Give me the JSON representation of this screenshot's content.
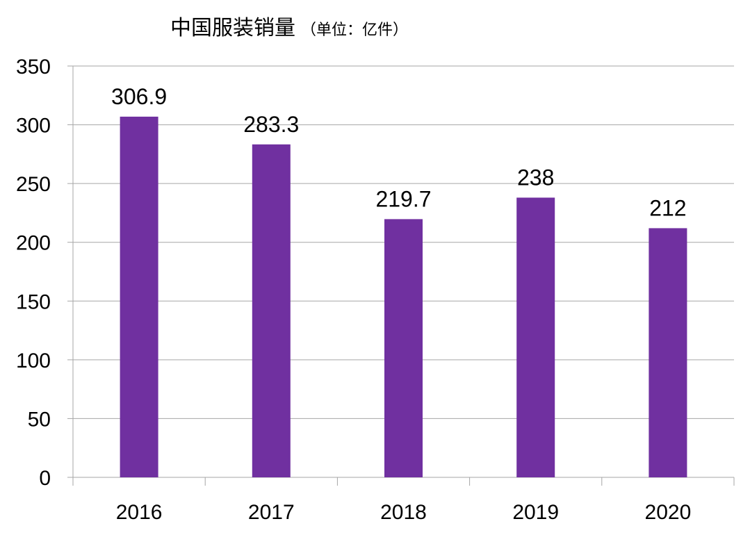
{
  "chart_data": {
    "type": "bar",
    "title": "中国服装销量",
    "subtitle": "（单位：亿件）",
    "categories": [
      "2016",
      "2017",
      "2018",
      "2019",
      "2020"
    ],
    "values": [
      306.9,
      283.3,
      219.7,
      238,
      212
    ],
    "data_labels": [
      "306.9",
      "283.3",
      "219.7",
      "238",
      "212"
    ],
    "xlabel": "",
    "ylabel": "",
    "ylim": [
      0,
      350
    ],
    "yticks": [
      0,
      50,
      100,
      150,
      200,
      250,
      300,
      350
    ],
    "grid": true,
    "legend": "none",
    "bar_color": "#7030A0",
    "grid_color": "#a6a6a6"
  }
}
